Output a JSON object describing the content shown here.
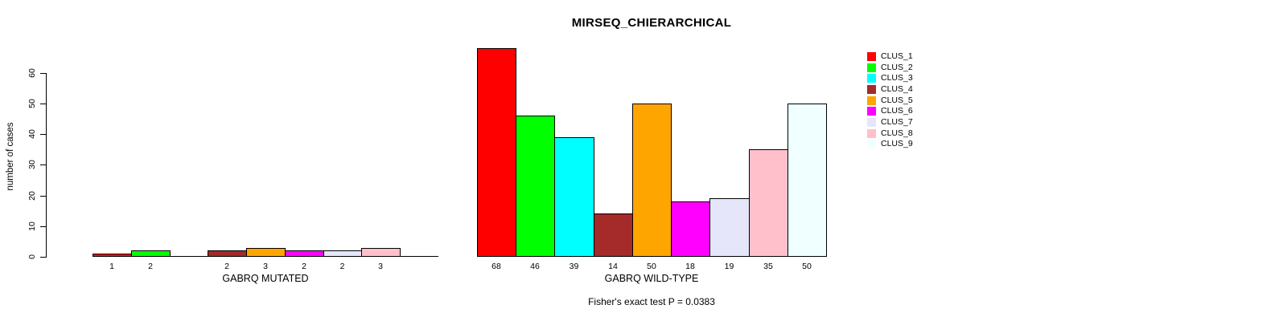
{
  "title": "MIRSEQ_CHIERARCHICAL",
  "annotation": "Fisher's exact test P = 0.0383",
  "y_axis": {
    "label": "number of cases",
    "ticks": [
      "0",
      "10",
      "20",
      "30",
      "40",
      "50",
      "60"
    ]
  },
  "legend": {
    "items": [
      {
        "label": "CLUS_1",
        "color": "#FF0000"
      },
      {
        "label": "CLUS_2",
        "color": "#00FF00"
      },
      {
        "label": "CLUS_3",
        "color": "#00FFFF"
      },
      {
        "label": "CLUS_4",
        "color": "#A52A2A"
      },
      {
        "label": "CLUS_5",
        "color": "#FFA500"
      },
      {
        "label": "CLUS_6",
        "color": "#FF00FF"
      },
      {
        "label": "CLUS_7",
        "color": "#E6E6FA"
      },
      {
        "label": "CLUS_8",
        "color": "#FFC0CB"
      },
      {
        "label": "CLUS_9",
        "color": "#F0FFFF"
      }
    ]
  },
  "chart_data": {
    "type": "bar",
    "title": "MIRSEQ_CHIERARCHICAL",
    "ylabel": "number of cases",
    "ylim": [
      0,
      68
    ],
    "yticks": [
      0,
      10,
      20,
      30,
      40,
      50,
      60
    ],
    "grid": false,
    "legend_position": "right",
    "series_labels": [
      "CLUS_1",
      "CLUS_2",
      "CLUS_3",
      "CLUS_4",
      "CLUS_5",
      "CLUS_6",
      "CLUS_7",
      "CLUS_8",
      "CLUS_9"
    ],
    "colors": [
      "#FF0000",
      "#00FF00",
      "#00FFFF",
      "#A52A2A",
      "#FFA500",
      "#FF00FF",
      "#E6E6FA",
      "#FFC0CB",
      "#F0FFFF"
    ],
    "groups": [
      {
        "xlabel": "GABRQ MUTATED",
        "values": [
          1,
          2,
          0,
          2,
          3,
          2,
          2,
          3,
          0
        ],
        "bar_labels": [
          "1",
          "2",
          "",
          "2",
          "3",
          "2",
          "2",
          "3",
          ""
        ]
      },
      {
        "xlabel": "GABRQ WILD-TYPE",
        "values": [
          68,
          46,
          39,
          14,
          50,
          18,
          19,
          35,
          50
        ],
        "bar_labels": [
          "68",
          "46",
          "39",
          "14",
          "50",
          "18",
          "19",
          "35",
          "50"
        ]
      }
    ],
    "annotation": "Fisher's exact test P = 0.0383"
  }
}
